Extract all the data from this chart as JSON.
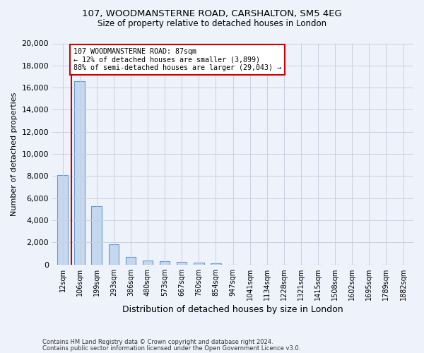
{
  "title_line1": "107, WOODMANSTERNE ROAD, CARSHALTON, SM5 4EG",
  "title_line2": "Size of property relative to detached houses in London",
  "xlabel": "Distribution of detached houses by size in London",
  "ylabel": "Number of detached properties",
  "categories": [
    "12sqm",
    "106sqm",
    "199sqm",
    "293sqm",
    "386sqm",
    "480sqm",
    "573sqm",
    "667sqm",
    "760sqm",
    "854sqm",
    "947sqm",
    "1041sqm",
    "1134sqm",
    "1228sqm",
    "1321sqm",
    "1415sqm",
    "1508sqm",
    "1602sqm",
    "1695sqm",
    "1789sqm",
    "1882sqm"
  ],
  "values": [
    8100,
    16600,
    5300,
    1850,
    700,
    380,
    270,
    210,
    160,
    130,
    0,
    0,
    0,
    0,
    0,
    0,
    0,
    0,
    0,
    0,
    0
  ],
  "bar_color": "#c5d8f0",
  "bar_edge_color": "#6699cc",
  "annotation_text": "107 WOODMANSTERNE ROAD: 87sqm\n← 12% of detached houses are smaller (3,899)\n88% of semi-detached houses are larger (29,043) →",
  "vline_color": "#cc0000",
  "annotation_box_color": "#ffffff",
  "annotation_box_edge_color": "#cc0000",
  "ylim": [
    0,
    20000
  ],
  "yticks": [
    0,
    2000,
    4000,
    6000,
    8000,
    10000,
    12000,
    14000,
    16000,
    18000,
    20000
  ],
  "footer_line1": "Contains HM Land Registry data © Crown copyright and database right 2024.",
  "footer_line2": "Contains public sector information licensed under the Open Government Licence v3.0.",
  "bg_color": "#eef2fb",
  "plot_bg_color": "#eef2fb",
  "grid_color": "#c8cfe0"
}
